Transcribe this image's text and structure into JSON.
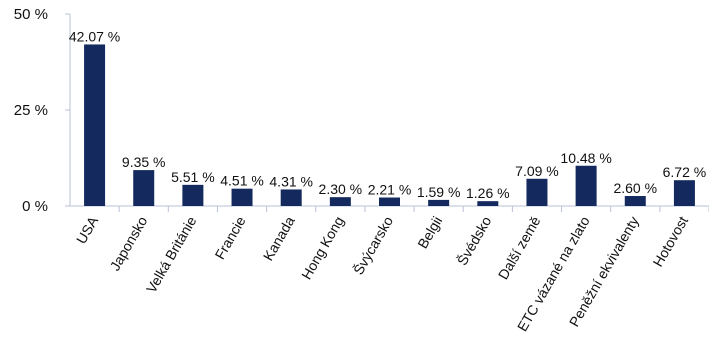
{
  "chart_data": {
    "type": "bar",
    "categories": [
      "USA",
      "Japonsko",
      "Velká Británie",
      "Francie",
      "Kanada",
      "Hong Kong",
      "Švýcarsko",
      "Belgii",
      "Švédsko",
      "Další země",
      "ETC vázané na zlato",
      "Peněžní ekvivalenty",
      "Hotovost"
    ],
    "values": [
      42.07,
      9.35,
      5.51,
      4.51,
      4.31,
      2.3,
      2.21,
      1.59,
      1.26,
      7.09,
      10.48,
      2.6,
      6.72
    ],
    "data_labels": [
      "42.07 %",
      "9.35 %",
      "5.51 %",
      "4.51 %",
      "4.31 %",
      "2.30 %",
      "2.21 %",
      "1.59 %",
      "1.26 %",
      "7.09 %",
      "10.48 %",
      "2.60 %",
      "6.72 %"
    ],
    "ylim": [
      0,
      50
    ],
    "yticks": [
      0,
      25,
      50
    ],
    "ytick_labels": [
      "0 %",
      "25 %",
      "50 %"
    ],
    "grid": false,
    "bar_color": "#142a5e",
    "axis_color": "#b9c2d6"
  }
}
